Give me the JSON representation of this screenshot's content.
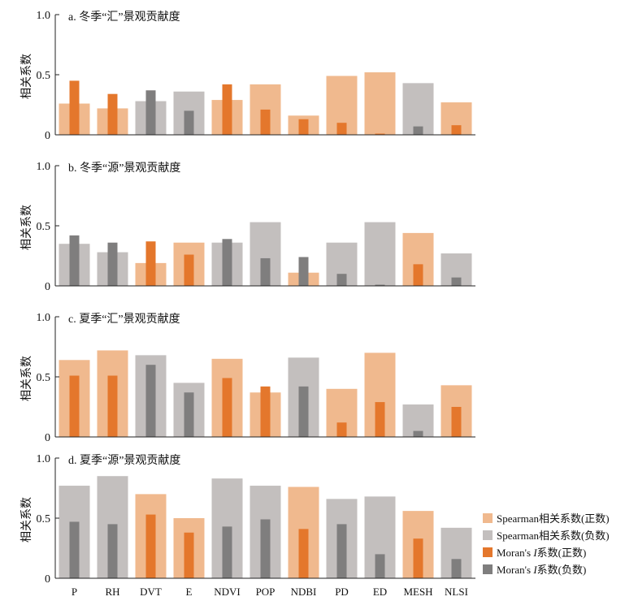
{
  "chart_data": {
    "type": "bar",
    "categories": [
      "P",
      "RH",
      "DVT",
      "E",
      "NDVI",
      "POP",
      "NDBI",
      "PD",
      "ED",
      "MESH",
      "NLSI"
    ],
    "ylabel": "相关系数",
    "ylim": [
      0,
      1.0
    ],
    "yticks": [
      {
        "value": 0,
        "label": "0"
      },
      {
        "value": 0.5,
        "label": "0.5"
      },
      {
        "value": 1.0,
        "label": "1.0"
      }
    ],
    "colors": {
      "spearman_pos": "#f0b98e",
      "spearman_neg": "#c3bfbe",
      "moran_pos": "#e4772c",
      "moran_neg": "#7f7e7e"
    },
    "legend": {
      "position": "bottom-right",
      "items": [
        {
          "key": "spearman_pos",
          "label": "Spearman相关系数(正数)"
        },
        {
          "key": "spearman_neg",
          "label": "Spearman相关系数(负数)"
        },
        {
          "key": "moran_pos",
          "label": "Moran's I系数(正数)",
          "prefix": "Moran's ",
          "italic": "I",
          "suffix": "系数(正数)"
        },
        {
          "key": "moran_neg",
          "label": "Moran's I系数(负数)",
          "prefix": "Moran's ",
          "italic": "I",
          "suffix": "系数(负数)"
        }
      ]
    },
    "panels": [
      {
        "title": "a. 冬季“汇”景观贡献度",
        "spearman": [
          0.26,
          0.22,
          0.28,
          0.36,
          0.29,
          0.42,
          0.16,
          0.49,
          0.52,
          0.43,
          0.27
        ],
        "spearman_sign": [
          "+",
          "+",
          "-",
          "-",
          "+",
          "+",
          "+",
          "+",
          "+",
          "-",
          "+"
        ],
        "moran": [
          0.45,
          0.34,
          0.37,
          0.2,
          0.42,
          0.21,
          0.13,
          0.1,
          0.01,
          0.07,
          0.08
        ],
        "moran_sign": [
          "+",
          "+",
          "-",
          "-",
          "+",
          "+",
          "+",
          "+",
          "+",
          "-",
          "+"
        ]
      },
      {
        "title": "b. 冬季“源”景观贡献度",
        "spearman": [
          0.35,
          0.28,
          0.19,
          0.36,
          0.36,
          0.53,
          0.11,
          0.36,
          0.53,
          0.44,
          0.27
        ],
        "spearman_sign": [
          "-",
          "-",
          "+",
          "+",
          "-",
          "-",
          "+",
          "-",
          "-",
          "+",
          "-"
        ],
        "moran": [
          0.42,
          0.36,
          0.37,
          0.26,
          0.39,
          0.23,
          0.24,
          0.1,
          0.01,
          0.18,
          0.07
        ],
        "moran_sign": [
          "-",
          "-",
          "+",
          "+",
          "-",
          "-",
          "-",
          "-",
          "-",
          "+",
          "-"
        ]
      },
      {
        "title": "c. 夏季“汇”景观贡献度",
        "spearman": [
          0.64,
          0.72,
          0.68,
          0.45,
          0.65,
          0.37,
          0.66,
          0.4,
          0.7,
          0.27,
          0.43
        ],
        "spearman_sign": [
          "+",
          "+",
          "-",
          "-",
          "+",
          "+",
          "-",
          "+",
          "+",
          "-",
          "+"
        ],
        "moran": [
          0.51,
          0.51,
          0.6,
          0.37,
          0.49,
          0.42,
          0.42,
          0.12,
          0.29,
          0.05,
          0.25
        ],
        "moran_sign": [
          "+",
          "+",
          "-",
          "-",
          "+",
          "+",
          "-",
          "+",
          "+",
          "-",
          "+"
        ]
      },
      {
        "title": "d. 夏季“源”景观贡献度",
        "spearman": [
          0.77,
          0.85,
          0.7,
          0.5,
          0.83,
          0.77,
          0.76,
          0.66,
          0.68,
          0.56,
          0.42
        ],
        "spearman_sign": [
          "-",
          "-",
          "+",
          "+",
          "-",
          "-",
          "+",
          "-",
          "-",
          "+",
          "-"
        ],
        "moran": [
          0.47,
          0.45,
          0.53,
          0.38,
          0.43,
          0.49,
          0.41,
          0.45,
          0.2,
          0.33,
          0.16
        ],
        "moran_sign": [
          "-",
          "-",
          "+",
          "+",
          "-",
          "-",
          "+",
          "-",
          "-",
          "+",
          "-"
        ]
      }
    ]
  }
}
